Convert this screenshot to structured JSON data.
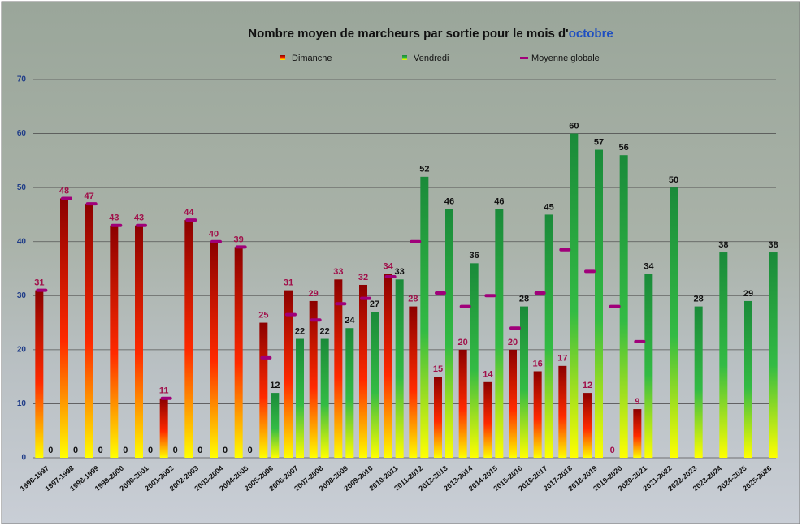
{
  "chart_data": {
    "type": "bar",
    "title": "Nombre moyen de marcheurs par sortie pour le mois d'",
    "title_highlight": "octobre",
    "categories": [
      "1996-1997",
      "1997-1998",
      "1998-1999",
      "1999-2000",
      "2000-2001",
      "2001-2002",
      "2002-2003",
      "2003-2004",
      "2004-2005",
      "2005-2006",
      "2006-2007",
      "2007-2008",
      "2008-2009",
      "2009-2010",
      "2010-2011",
      "2011-2012",
      "2012-2013",
      "2013-2014",
      "2014-2015",
      "2015-2016",
      "2016-2017",
      "2017-2018",
      "2018-2019",
      "2019-2020",
      "2020-2021",
      "2021-2022",
      "2022-2023",
      "2023-2024",
      "2024-2025",
      "2025-2026"
    ],
    "series": [
      {
        "name": "Dimanche",
        "color": "#8b0000",
        "values": [
          31,
          48,
          47,
          43,
          43,
          11,
          44,
          40,
          39,
          25,
          31,
          29,
          33,
          32,
          34,
          28,
          15,
          20,
          14,
          20,
          16,
          17,
          12,
          0,
          9,
          null,
          null,
          null,
          null,
          null
        ]
      },
      {
        "name": "Vendredi",
        "color": "#1a8a3a",
        "values": [
          0,
          0,
          0,
          0,
          0,
          0,
          0,
          0,
          0,
          12,
          22,
          22,
          24,
          27,
          33,
          52,
          46,
          36,
          46,
          28,
          45,
          60,
          57,
          56,
          34,
          50,
          28,
          38,
          29,
          38
        ]
      },
      {
        "name": "Moyenne globale",
        "color": "#a0007a",
        "values": [
          31,
          48,
          47,
          43,
          43,
          11,
          44,
          40,
          39,
          18.5,
          26.5,
          25.5,
          28.5,
          29.5,
          33.5,
          40,
          30.5,
          28,
          30,
          24,
          30.5,
          38.5,
          34.5,
          28,
          21.5,
          null,
          null,
          null,
          null,
          null
        ]
      }
    ],
    "ylim": [
      0,
      70
    ],
    "yticks": [
      0,
      10,
      20,
      30,
      40,
      50,
      60,
      70
    ],
    "grid": true
  }
}
